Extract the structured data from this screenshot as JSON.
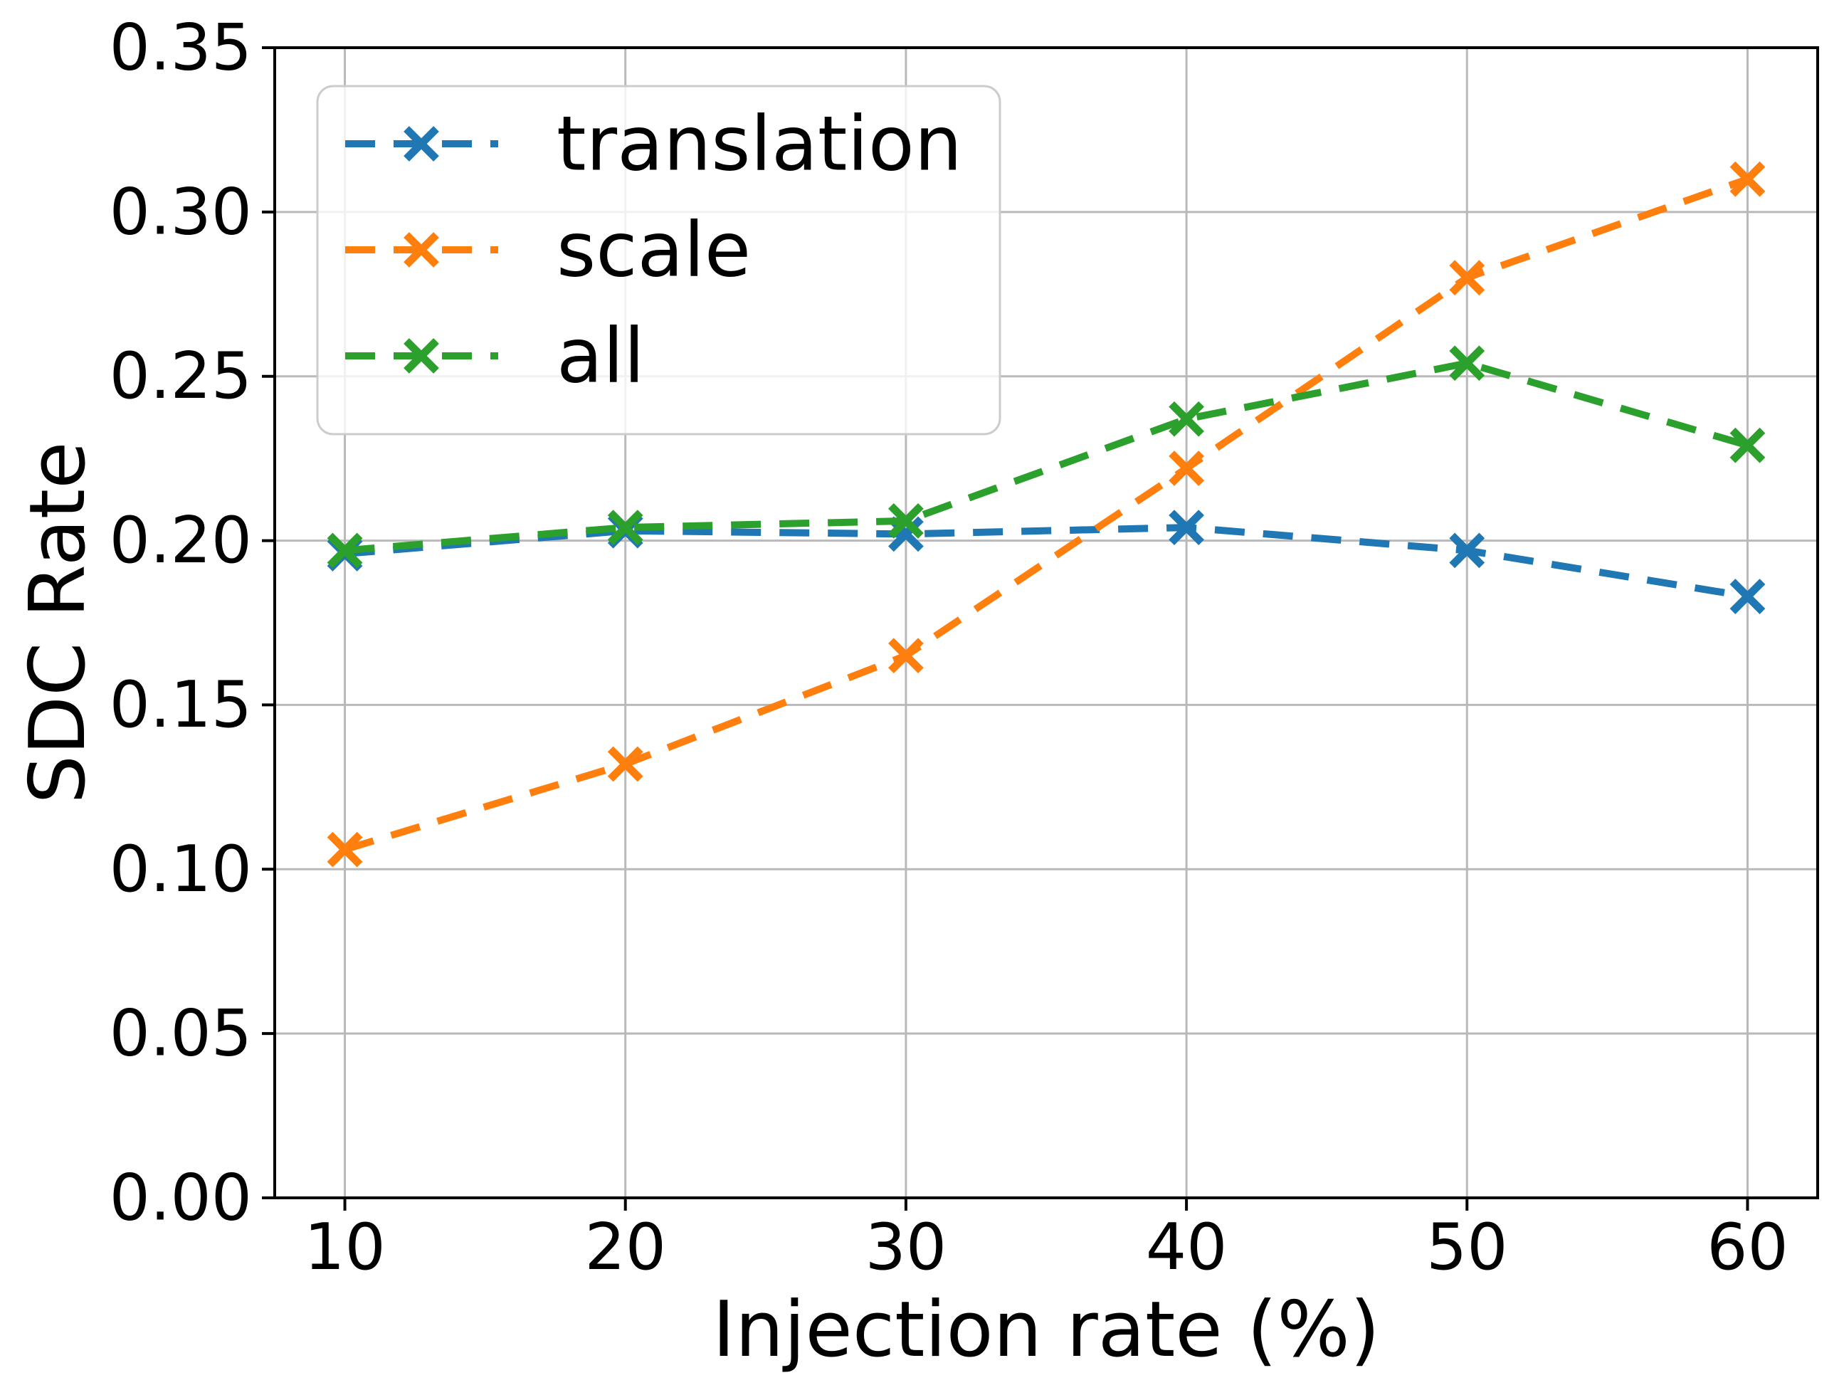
{
  "chart_data": {
    "type": "line",
    "title": "",
    "xlabel": "Injection rate (%)",
    "ylabel": "SDC Rate",
    "x": [
      10,
      20,
      30,
      40,
      50,
      60
    ],
    "xtick_labels": [
      "10",
      "20",
      "30",
      "40",
      "50",
      "60"
    ],
    "ytick_values": [
      0,
      0.05,
      0.1,
      0.15,
      0.2,
      0.25,
      0.3,
      0.35
    ],
    "ytick_labels": [
      "0.00",
      "0.05",
      "0.10",
      "0.15",
      "0.20",
      "0.25",
      "0.30",
      "0.35"
    ],
    "xlim": [
      7.5,
      62.5
    ],
    "ylim": [
      0,
      0.35
    ],
    "grid": true,
    "line_style": "dashed",
    "marker": "x",
    "legend": {
      "position": "upper left",
      "entries": [
        "translation",
        "scale",
        "all"
      ]
    },
    "series": [
      {
        "name": "translation",
        "color": "#1f77b4",
        "values": [
          0.196,
          0.203,
          0.202,
          0.204,
          0.197,
          0.183
        ]
      },
      {
        "name": "scale",
        "color": "#ff7f0e",
        "values": [
          0.106,
          0.132,
          0.165,
          0.222,
          0.28,
          0.31
        ]
      },
      {
        "name": "all",
        "color": "#2ca02c",
        "values": [
          0.197,
          0.204,
          0.206,
          0.237,
          0.254,
          0.229
        ]
      }
    ],
    "colors": {
      "background": "#ffffff",
      "grid": "#b9b9b9",
      "spine": "#000000",
      "text": "#000000",
      "legend_edge": "#cccccc",
      "legend_face": "#ffffff"
    }
  }
}
